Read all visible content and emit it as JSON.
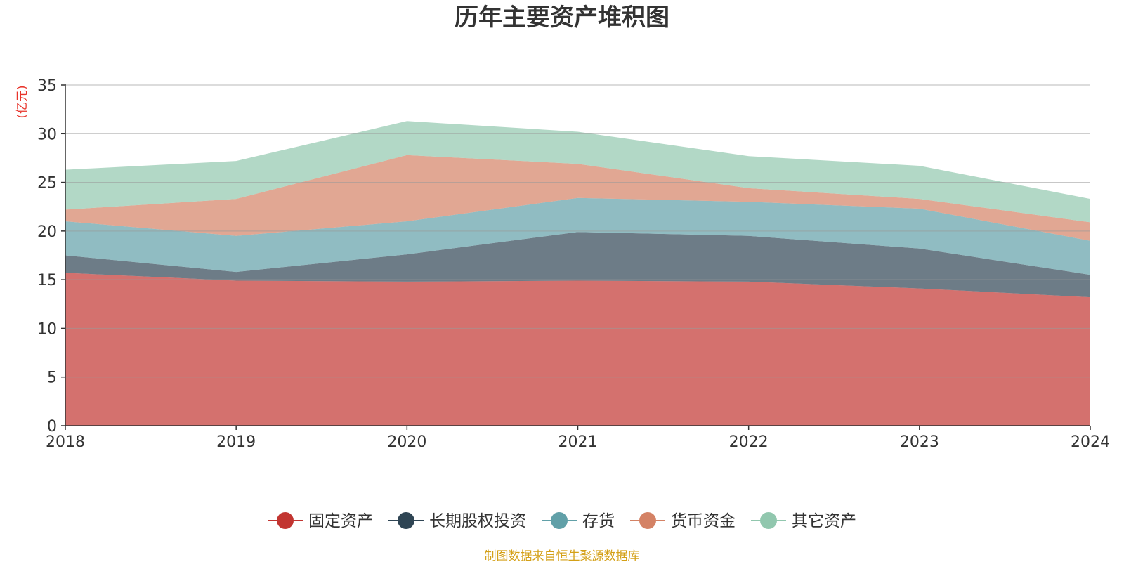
{
  "chart_data": {
    "type": "area",
    "stacked": true,
    "title": "历年主要资产堆积图",
    "y_unit": "(亿元)",
    "source": "制图数据来自恒生聚源数据库",
    "x": [
      "2018",
      "2019",
      "2020",
      "2021",
      "2022",
      "2023",
      "2024"
    ],
    "ylim": [
      0,
      35
    ],
    "yticks": [
      0,
      5,
      10,
      15,
      20,
      25,
      30,
      35
    ],
    "grid": true,
    "legend_position": "bottom-center",
    "series": [
      {
        "name": "固定资产",
        "color": "#c23531",
        "values": [
          15.7,
          14.9,
          14.8,
          14.9,
          14.8,
          14.1,
          13.2
        ]
      },
      {
        "name": "长期股权投资",
        "color": "#2f4554",
        "values": [
          1.8,
          0.9,
          2.8,
          5.0,
          4.7,
          4.1,
          2.3
        ]
      },
      {
        "name": "存货",
        "color": "#61a0a8",
        "values": [
          3.5,
          3.7,
          3.4,
          3.5,
          3.5,
          4.1,
          3.5
        ]
      },
      {
        "name": "货币资金",
        "color": "#d48265",
        "values": [
          1.2,
          3.8,
          6.8,
          3.5,
          1.4,
          1.0,
          1.9
        ]
      },
      {
        "name": "其它资产",
        "color": "#91c7ae",
        "values": [
          4.1,
          3.9,
          3.5,
          3.3,
          3.3,
          3.4,
          2.4
        ]
      }
    ]
  }
}
